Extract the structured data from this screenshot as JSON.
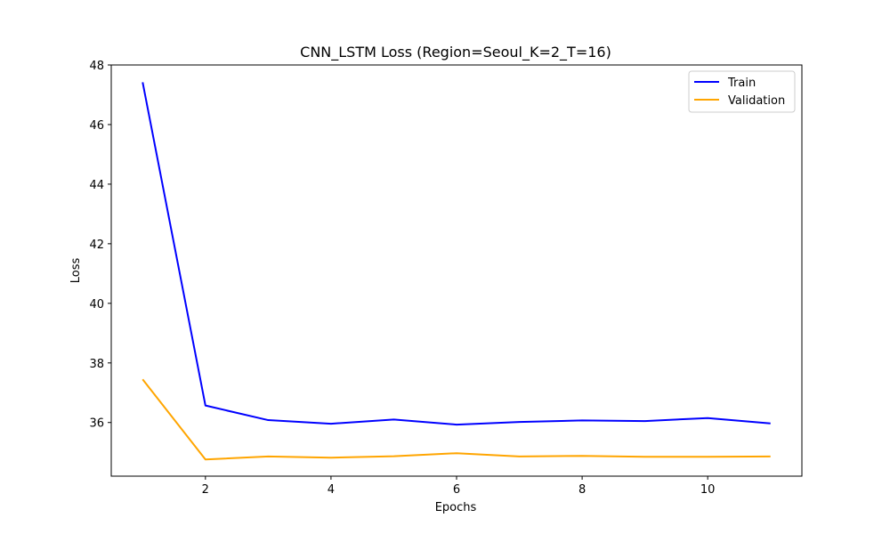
{
  "chart_data": {
    "type": "line",
    "title": "CNN_LSTM Loss (Region=Seoul_K=2_T=16)",
    "xlabel": "Epochs",
    "ylabel": "Loss",
    "x": [
      1,
      2,
      3,
      4,
      5,
      6,
      7,
      8,
      9,
      10,
      11
    ],
    "xlim": [
      0.5,
      11.5
    ],
    "ylim": [
      34.2,
      48.0
    ],
    "xticks": [
      2,
      4,
      6,
      8,
      10
    ],
    "yticks": [
      36,
      38,
      40,
      42,
      44,
      46,
      48
    ],
    "grid": false,
    "legend_position": "top-right",
    "series": [
      {
        "name": "Train",
        "color": "#0000ff",
        "values": [
          47.42,
          36.57,
          36.08,
          35.96,
          36.1,
          35.93,
          36.02,
          36.07,
          36.05,
          36.15,
          35.97
        ]
      },
      {
        "name": "Validation",
        "color": "#ffa500",
        "values": [
          37.45,
          34.76,
          34.86,
          34.82,
          34.87,
          34.97,
          34.86,
          34.88,
          34.85,
          34.85,
          34.86
        ]
      }
    ]
  }
}
